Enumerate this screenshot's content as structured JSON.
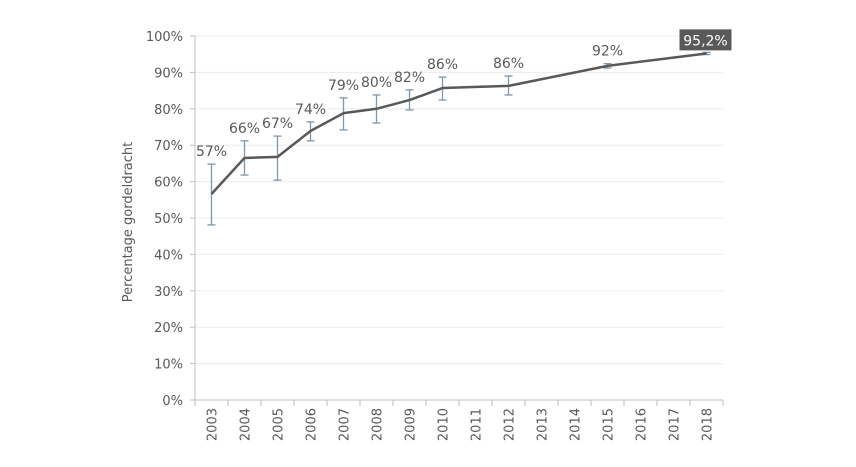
{
  "chart_data": {
    "type": "line",
    "title": "",
    "xlabel": "",
    "ylabel": "Percentage gordeldracht",
    "ylim": [
      0,
      100
    ],
    "grid": true,
    "legend": "none",
    "yticks": [
      "0%",
      "10%",
      "20%",
      "30%",
      "40%",
      "50%",
      "60%",
      "70%",
      "80%",
      "90%",
      "100%"
    ],
    "categories": [
      "2003",
      "2004",
      "2005",
      "2006",
      "2007",
      "2008",
      "2009",
      "2010",
      "2011",
      "2012",
      "2013",
      "2014",
      "2015",
      "2016",
      "2017",
      "2018"
    ],
    "series": [
      {
        "name": "Percentage gordeldracht",
        "color": "#595959",
        "points": [
          {
            "x": "2003",
            "y": 56.6,
            "low": 48.1,
            "high": 64.8,
            "label": "57%"
          },
          {
            "x": "2004",
            "y": 66.5,
            "low": 61.8,
            "high": 71.2,
            "label": "66%"
          },
          {
            "x": "2005",
            "y": 66.8,
            "low": 60.4,
            "high": 72.5,
            "label": "67%"
          },
          {
            "x": "2006",
            "y": 73.9,
            "low": 71.2,
            "high": 76.4,
            "label": "74%"
          },
          {
            "x": "2007",
            "y": 78.8,
            "low": 74.2,
            "high": 83.0,
            "label": "79%"
          },
          {
            "x": "2008",
            "y": 80.0,
            "low": 76.1,
            "high": 83.8,
            "label": "80%"
          },
          {
            "x": "2009",
            "y": 82.4,
            "low": 79.7,
            "high": 85.2,
            "label": "82%"
          },
          {
            "x": "2010",
            "y": 85.7,
            "low": 82.4,
            "high": 88.7,
            "label": "86%"
          },
          {
            "x": "2012",
            "y": 86.3,
            "low": 83.8,
            "high": 89.0,
            "label": "86%"
          },
          {
            "x": "2015",
            "y": 91.8,
            "low": 91.2,
            "high": 92.4,
            "label": "92%"
          },
          {
            "x": "2018",
            "y": 95.2,
            "low": 94.9,
            "high": 95.5,
            "label": "95,2%",
            "highlight": true
          }
        ]
      }
    ],
    "errorbar_color": "#7f96a8",
    "highlight_bg": "#595959"
  }
}
